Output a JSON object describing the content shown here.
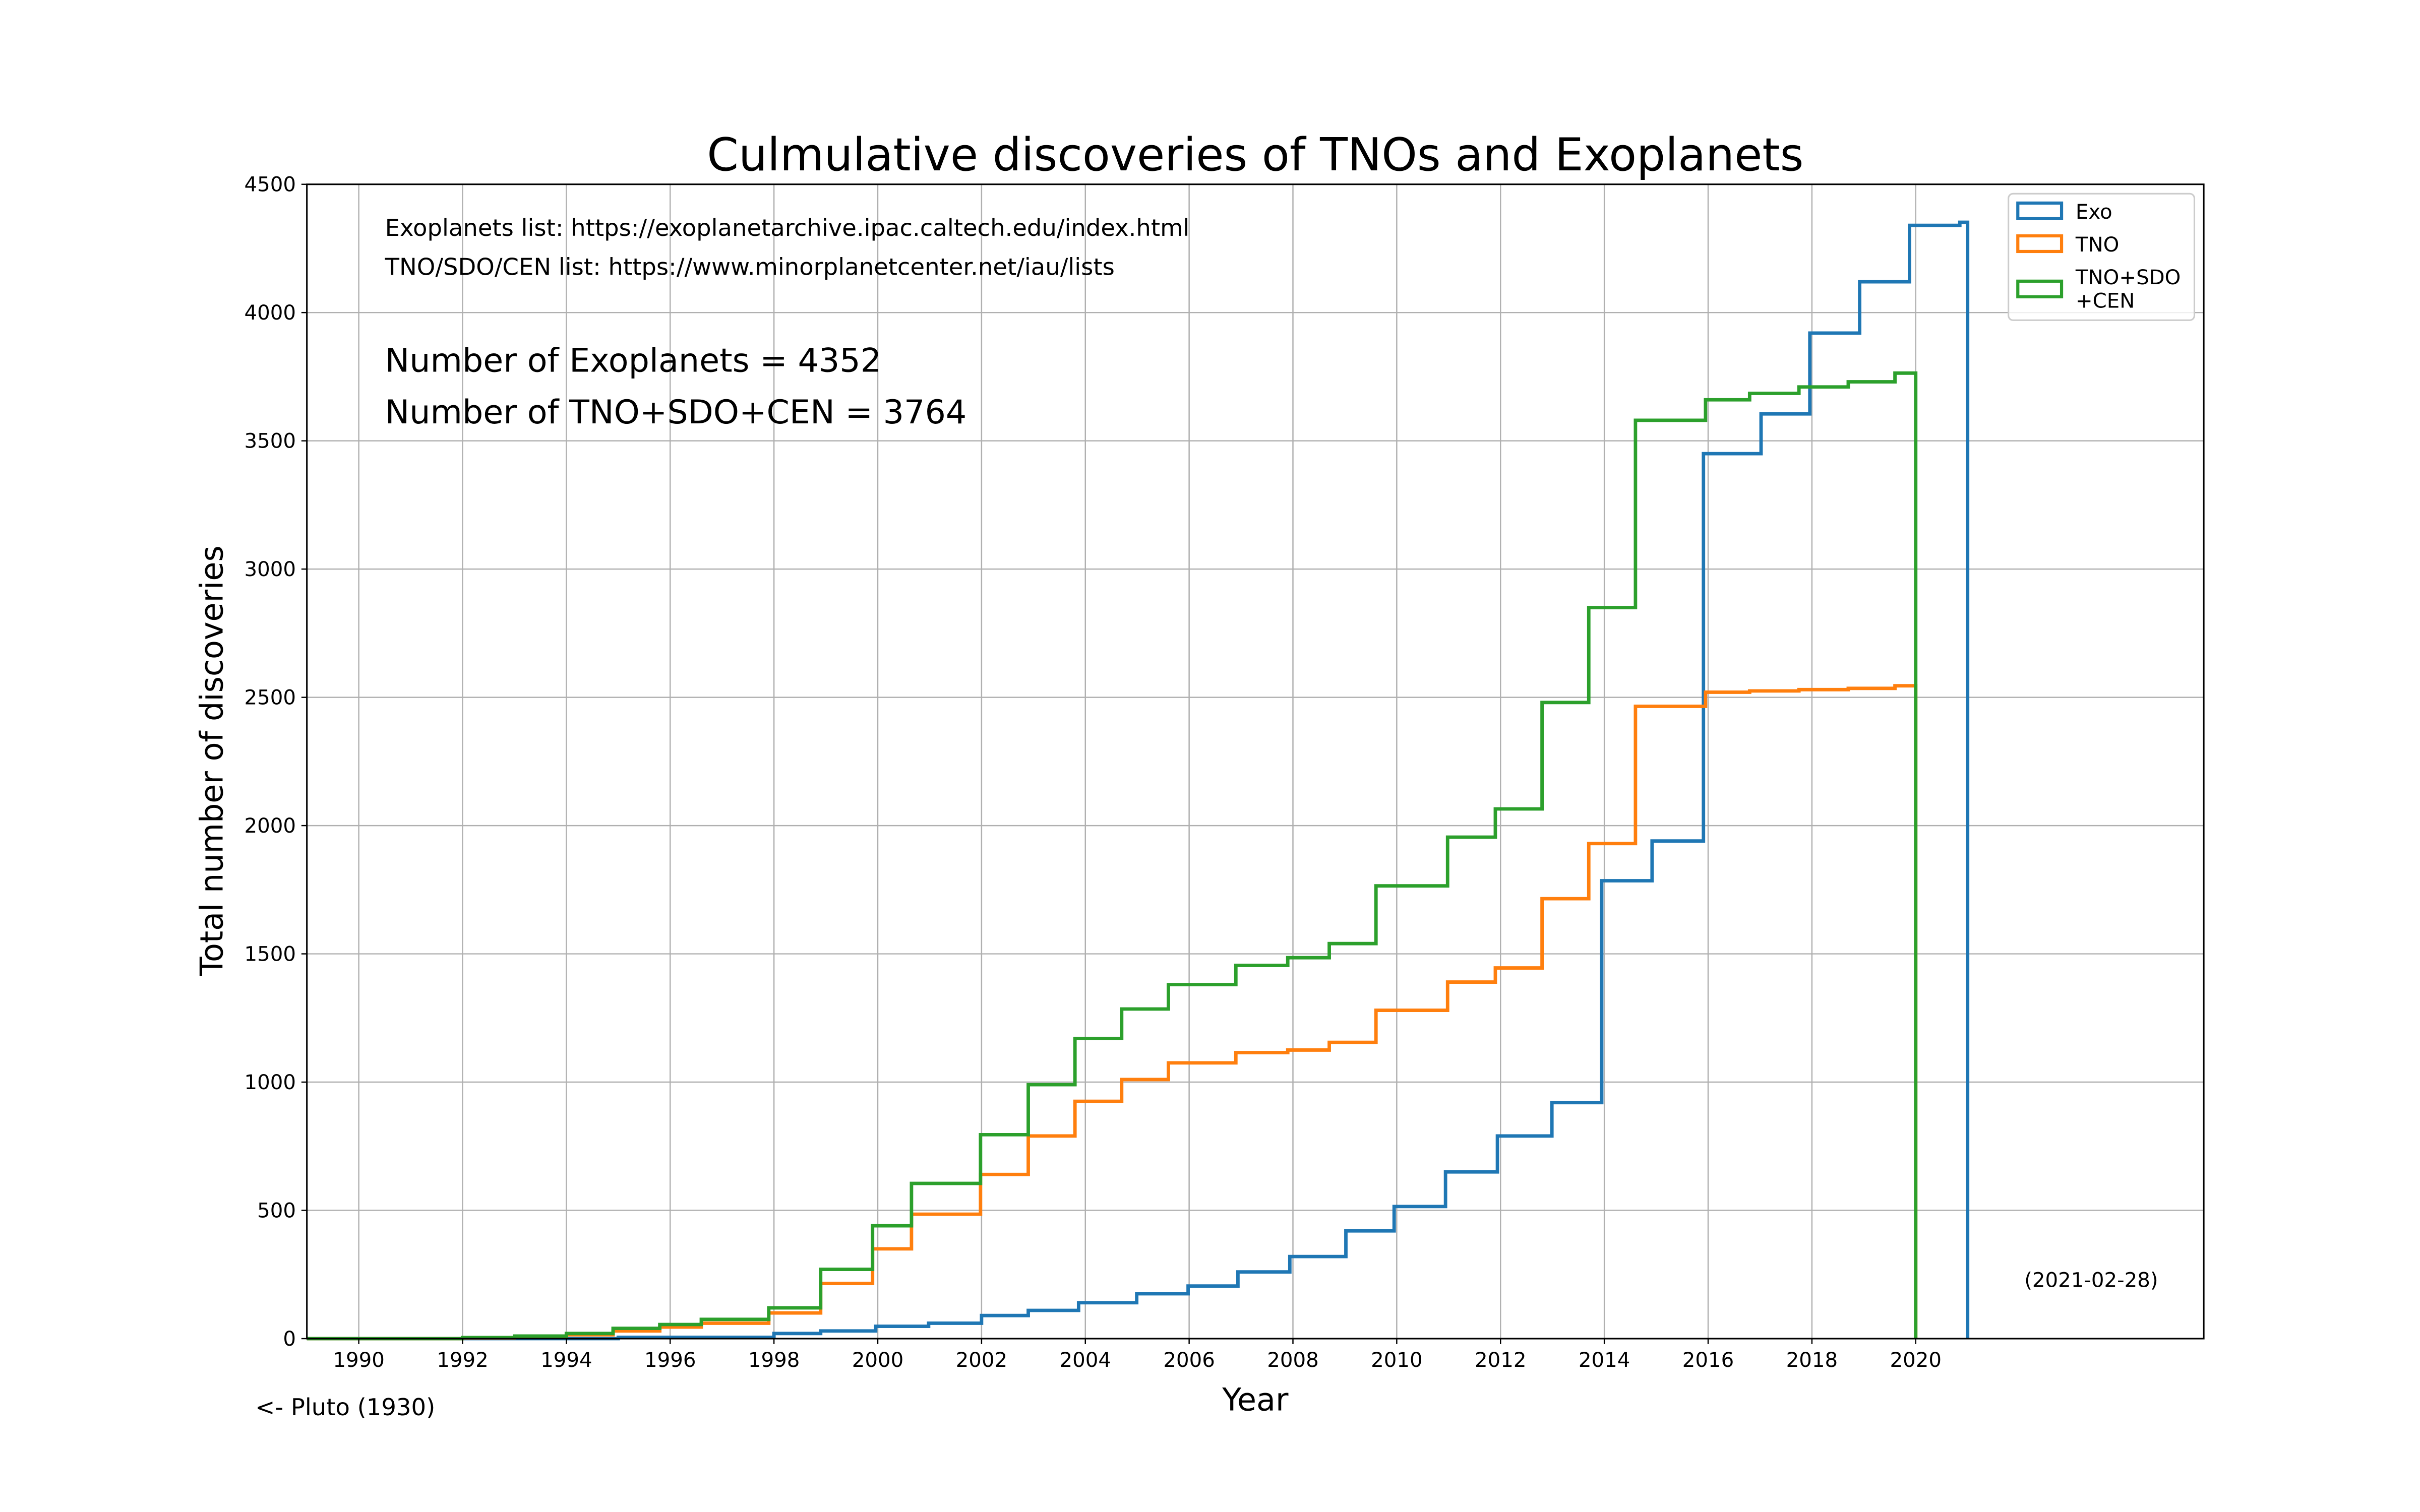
{
  "chart_data": {
    "type": "line",
    "step": true,
    "title": "Culmulative discoveries of TNOs and Exoplanets",
    "xlabel": "Year",
    "ylabel": "Total number of discoveries",
    "xlim": [
      1989,
      2025.55
    ],
    "ylim": [
      0,
      4500
    ],
    "xticks": [
      1990,
      1992,
      1994,
      1996,
      1998,
      2000,
      2002,
      2004,
      2006,
      2008,
      2010,
      2012,
      2014,
      2016,
      2018,
      2020
    ],
    "yticks": [
      0,
      500,
      1000,
      1500,
      2000,
      2500,
      3000,
      3500,
      4000,
      4500
    ],
    "grid": true,
    "legend_position": "top-right",
    "series": [
      {
        "name": "Exo",
        "color": "#1f77b4",
        "points": [
          [
            1989,
            0
          ],
          [
            1995,
            5
          ],
          [
            1998.0,
            20
          ],
          [
            1998.9,
            30
          ],
          [
            1999.96,
            48
          ],
          [
            2000.98,
            60
          ],
          [
            2002.0,
            90
          ],
          [
            2002.9,
            110
          ],
          [
            2003.87,
            140
          ],
          [
            2004.99,
            175
          ],
          [
            2005.98,
            205
          ],
          [
            2006.94,
            260
          ],
          [
            2007.94,
            320
          ],
          [
            2009.02,
            420
          ],
          [
            2009.95,
            515
          ],
          [
            2010.94,
            650
          ],
          [
            2011.94,
            790
          ],
          [
            2012.99,
            920
          ],
          [
            2013.95,
            1785
          ],
          [
            2014.92,
            1940
          ],
          [
            2015.91,
            3450
          ],
          [
            2017.02,
            3605
          ],
          [
            2017.96,
            3920
          ],
          [
            2018.92,
            4120
          ],
          [
            2019.88,
            4340
          ],
          [
            2020.85,
            4352
          ],
          [
            2021.0,
            0
          ]
        ]
      },
      {
        "name": "TNO",
        "color": "#ff7f0e",
        "points": [
          [
            1989,
            0
          ],
          [
            1992,
            3
          ],
          [
            1993,
            8
          ],
          [
            1994,
            15
          ],
          [
            1994.9,
            30
          ],
          [
            1995.8,
            45
          ],
          [
            1996.6,
            60
          ],
          [
            1997.9,
            100
          ],
          [
            1998.9,
            215
          ],
          [
            1999.9,
            350
          ],
          [
            2000.65,
            485
          ],
          [
            2001.98,
            640
          ],
          [
            2002.9,
            790
          ],
          [
            2003.8,
            925
          ],
          [
            2004.7,
            1010
          ],
          [
            2005.6,
            1075
          ],
          [
            2006.9,
            1115
          ],
          [
            2007.9,
            1125
          ],
          [
            2008.7,
            1155
          ],
          [
            2009.6,
            1280
          ],
          [
            2010.98,
            1390
          ],
          [
            2011.9,
            1445
          ],
          [
            2012.8,
            1715
          ],
          [
            2013.7,
            1930
          ],
          [
            2014.6,
            2465
          ],
          [
            2015.95,
            2520
          ],
          [
            2016.8,
            2525
          ],
          [
            2017.75,
            2530
          ],
          [
            2018.7,
            2535
          ],
          [
            2019.6,
            2545
          ],
          [
            2020.0,
            0
          ]
        ]
      },
      {
        "name": "TNO+SDO\n+CEN",
        "color": "#2ca02c",
        "points": [
          [
            1989,
            0
          ],
          [
            1992,
            4
          ],
          [
            1993,
            10
          ],
          [
            1994,
            20
          ],
          [
            1994.9,
            40
          ],
          [
            1995.8,
            55
          ],
          [
            1996.6,
            75
          ],
          [
            1997.9,
            120
          ],
          [
            1998.9,
            270
          ],
          [
            1999.9,
            440
          ],
          [
            2000.65,
            605
          ],
          [
            2001.98,
            795
          ],
          [
            2002.9,
            990
          ],
          [
            2003.8,
            1170
          ],
          [
            2004.7,
            1285
          ],
          [
            2005.6,
            1380
          ],
          [
            2006.9,
            1455
          ],
          [
            2007.9,
            1485
          ],
          [
            2008.7,
            1540
          ],
          [
            2009.6,
            1765
          ],
          [
            2010.98,
            1955
          ],
          [
            2011.9,
            2065
          ],
          [
            2012.8,
            2480
          ],
          [
            2013.7,
            2850
          ],
          [
            2014.6,
            3580
          ],
          [
            2015.95,
            3660
          ],
          [
            2016.8,
            3685
          ],
          [
            2017.75,
            3710
          ],
          [
            2018.7,
            3730
          ],
          [
            2019.6,
            3764
          ],
          [
            2020.0,
            0
          ]
        ]
      }
    ],
    "legend": [
      "Exo",
      "TNO",
      "TNO+SDO",
      "+CEN"
    ],
    "annotations": {
      "exo_source": "Exoplanets list: https://exoplanetarchive.ipac.caltech.edu/index.html",
      "tno_source": "TNO/SDO/CEN list: https://www.minorplanetcenter.net/iau/lists",
      "exo_count": "Number of Exoplanets = 4352",
      "tno_count": "Number of TNO+SDO+CEN = 3764",
      "date": "(2021-02-28)",
      "pluto": "<- Pluto (1930)"
    }
  }
}
